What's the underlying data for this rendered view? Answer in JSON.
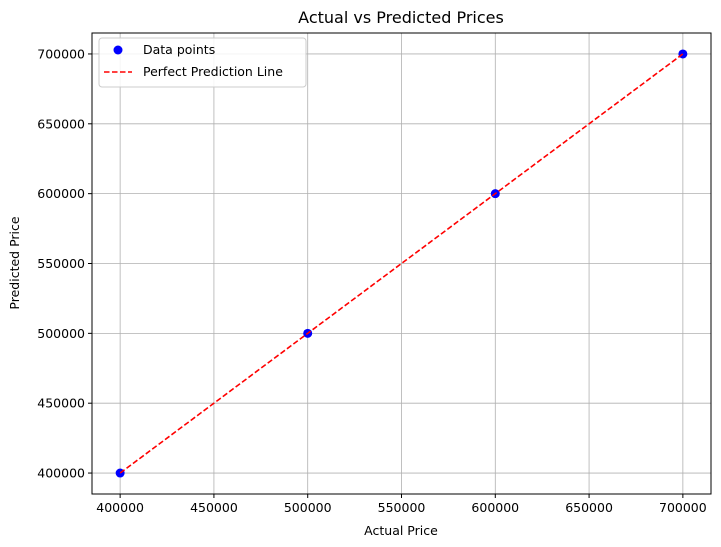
{
  "chart_data": {
    "type": "scatter",
    "title": "Actual vs Predicted Prices",
    "xlabel": "Actual Price",
    "ylabel": "Predicted Price",
    "xlim": [
      385000,
      715000
    ],
    "ylim": [
      385000,
      715000
    ],
    "xticks": [
      400000,
      450000,
      500000,
      550000,
      600000,
      650000,
      700000
    ],
    "yticks": [
      400000,
      450000,
      500000,
      550000,
      600000,
      650000,
      700000
    ],
    "xtick_labels": [
      "400000",
      "450000",
      "500000",
      "550000",
      "600000",
      "650000",
      "700000"
    ],
    "ytick_labels": [
      "400000",
      "450000",
      "500000",
      "550000",
      "600000",
      "650000",
      "700000"
    ],
    "grid": true,
    "legend_position": "top-left",
    "series": [
      {
        "name": "Data points",
        "kind": "scatter",
        "color": "#0000ff",
        "x": [
          400000,
          500000,
          600000,
          700000
        ],
        "y": [
          400000,
          500000,
          600000,
          700000
        ]
      },
      {
        "name": "Perfect Prediction Line",
        "kind": "line",
        "style": "dashed",
        "color": "#ff0000",
        "x": [
          400000,
          700000
        ],
        "y": [
          400000,
          700000
        ]
      }
    ]
  }
}
